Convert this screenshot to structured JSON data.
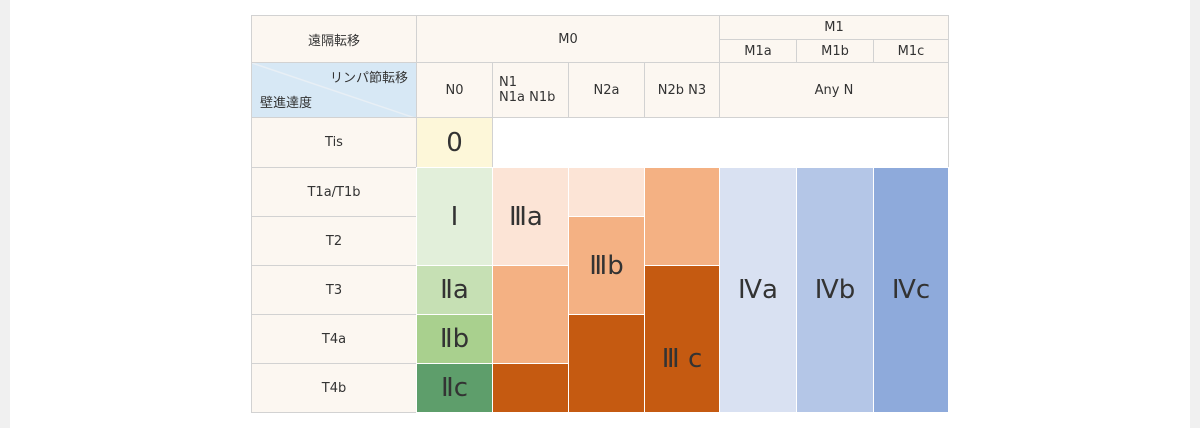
{
  "header": {
    "metastasis": "遠隔転移",
    "m0": "M0",
    "m1": "M1",
    "m1a": "M1a",
    "m1b": "M1b",
    "m1c": "M1c",
    "lymph": "リンパ節転移",
    "depth": "壁進達度",
    "n0": "N0",
    "n1_line1": "N1",
    "n1_line2": "N1a N1b",
    "n2a": "N2a",
    "n2b_n3": "N2b N3",
    "any_n": "Any N"
  },
  "rows": {
    "tis": "Tis",
    "t1": "T1a/T1b",
    "t2": "T2",
    "t3": "T3",
    "t4a": "T4a",
    "t4b": "T4b"
  },
  "stages": {
    "s0": "0",
    "s1": "Ⅰ",
    "s2a": "Ⅱa",
    "s2b": "Ⅱb",
    "s2c": "Ⅱc",
    "s3a": "Ⅲa",
    "s3b": "Ⅲb",
    "s3c": "Ⅲ c",
    "s4a": "Ⅳa",
    "s4b": "Ⅳb",
    "s4c": "Ⅳc"
  },
  "colors": {
    "stage0": "#fdf7d9",
    "stage1": "#e2efda",
    "stage2a": "#c6e0b4",
    "stage2b": "#a9d08e",
    "stage2c": "#5e9e6b",
    "stage3a": "#fce4d6",
    "stage3b": "#f4b183",
    "stage3c": "#c55a11",
    "stage4a": "#d9e1f2",
    "stage4b": "#b4c6e7",
    "stage4c": "#8eaadb",
    "header_bg": "#fcf7f1",
    "corner_bg": "#d7e8f5"
  }
}
